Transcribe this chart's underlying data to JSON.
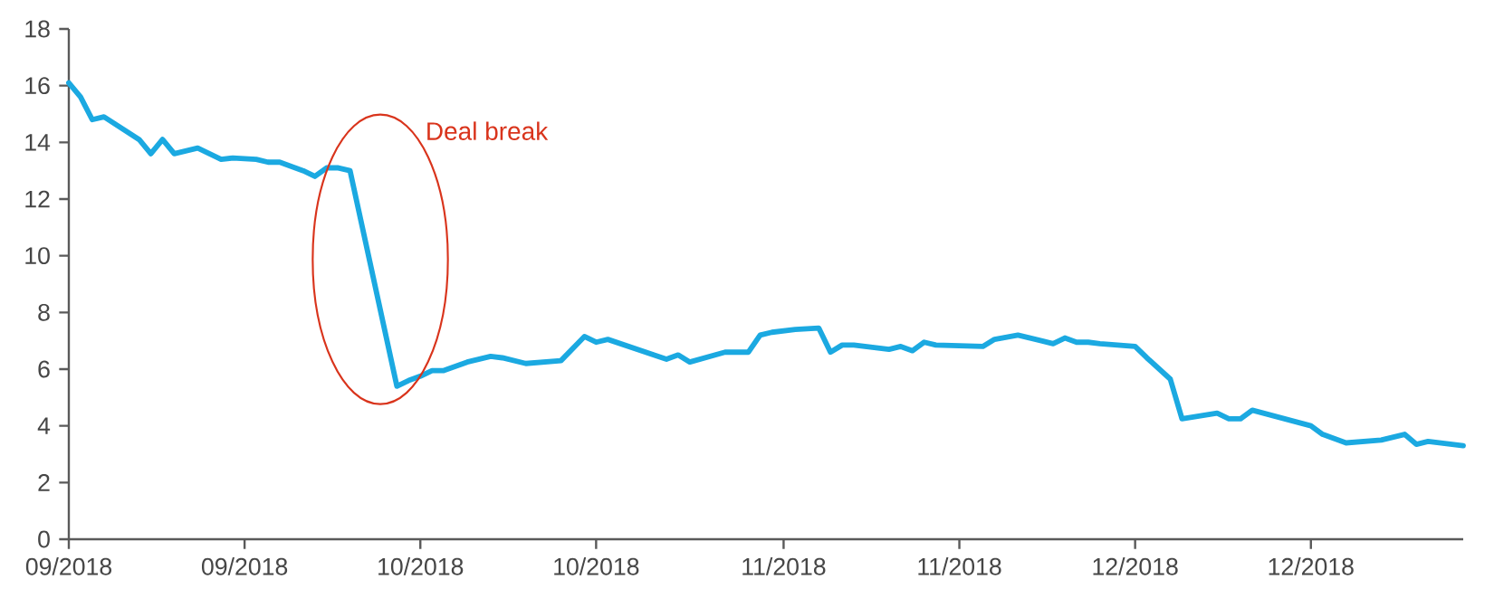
{
  "chart_data": {
    "type": "line",
    "xlim": [
      "2018-09-01",
      "2018-12-29"
    ],
    "ylim": [
      0,
      18
    ],
    "xticks": [
      {
        "value": "2018-09-01",
        "label": "09/2018"
      },
      {
        "value": "2018-09-16",
        "label": "09/2018"
      },
      {
        "value": "2018-10-01",
        "label": "10/2018"
      },
      {
        "value": "2018-10-16",
        "label": "10/2018"
      },
      {
        "value": "2018-11-01",
        "label": "11/2018"
      },
      {
        "value": "2018-11-16",
        "label": "11/2018"
      },
      {
        "value": "2018-12-01",
        "label": "12/2018"
      },
      {
        "value": "2018-12-16",
        "label": "12/2018"
      }
    ],
    "yticks": [
      0,
      2,
      4,
      6,
      8,
      10,
      12,
      14,
      16,
      18
    ],
    "grid": false,
    "legend": false,
    "marker": "none",
    "line_style": "solid",
    "annotations": [
      "Deal break"
    ],
    "x": [
      "2018-09-01",
      "2018-09-02",
      "2018-09-03",
      "2018-09-04",
      "2018-09-07",
      "2018-09-08",
      "2018-09-09",
      "2018-09-10",
      "2018-09-12",
      "2018-09-14",
      "2018-09-15",
      "2018-09-17",
      "2018-09-18",
      "2018-09-19",
      "2018-09-21",
      "2018-09-22",
      "2018-09-23",
      "2018-09-24",
      "2018-09-25",
      "2018-09-29",
      "2018-09-30",
      "2018-10-01",
      "2018-10-02",
      "2018-10-03",
      "2018-10-05",
      "2018-10-07",
      "2018-10-08",
      "2018-10-10",
      "2018-10-13",
      "2018-10-15",
      "2018-10-16",
      "2018-10-17",
      "2018-10-22",
      "2018-10-23",
      "2018-10-24",
      "2018-10-27",
      "2018-10-29",
      "2018-10-30",
      "2018-10-31",
      "2018-11-02",
      "2018-11-04",
      "2018-11-05",
      "2018-11-06",
      "2018-11-07",
      "2018-11-10",
      "2018-11-11",
      "2018-11-12",
      "2018-11-13",
      "2018-11-14",
      "2018-11-18",
      "2018-11-19",
      "2018-11-21",
      "2018-11-23",
      "2018-11-24",
      "2018-11-25",
      "2018-11-26",
      "2018-11-27",
      "2018-11-28",
      "2018-12-01",
      "2018-12-02",
      "2018-12-04",
      "2018-12-05",
      "2018-12-08",
      "2018-12-09",
      "2018-12-10",
      "2018-12-11",
      "2018-12-16",
      "2018-12-17",
      "2018-12-19",
      "2018-12-22",
      "2018-12-24",
      "2018-12-25",
      "2018-12-26",
      "2018-12-29"
    ],
    "series": [
      {
        "color": "#1ba9e1",
        "values": [
          16.1,
          15.6,
          14.8,
          14.9,
          14.1,
          13.6,
          14.1,
          13.6,
          13.8,
          13.4,
          13.45,
          13.4,
          13.3,
          13.3,
          13.0,
          12.8,
          13.1,
          13.1,
          13.0,
          5.4,
          5.6,
          5.75,
          5.95,
          5.95,
          6.25,
          6.45,
          6.4,
          6.2,
          6.3,
          7.15,
          6.95,
          7.05,
          6.35,
          6.5,
          6.25,
          6.6,
          6.6,
          7.2,
          7.3,
          7.4,
          7.45,
          6.6,
          6.85,
          6.85,
          6.7,
          6.8,
          6.65,
          6.95,
          6.85,
          6.8,
          7.05,
          7.2,
          7.0,
          6.9,
          7.1,
          6.95,
          6.95,
          6.9,
          6.8,
          6.4,
          5.65,
          4.25,
          4.45,
          4.25,
          4.25,
          4.55,
          4.0,
          3.7,
          3.4,
          3.5,
          3.7,
          3.35,
          3.45,
          3.3
        ]
      }
    ]
  }
}
